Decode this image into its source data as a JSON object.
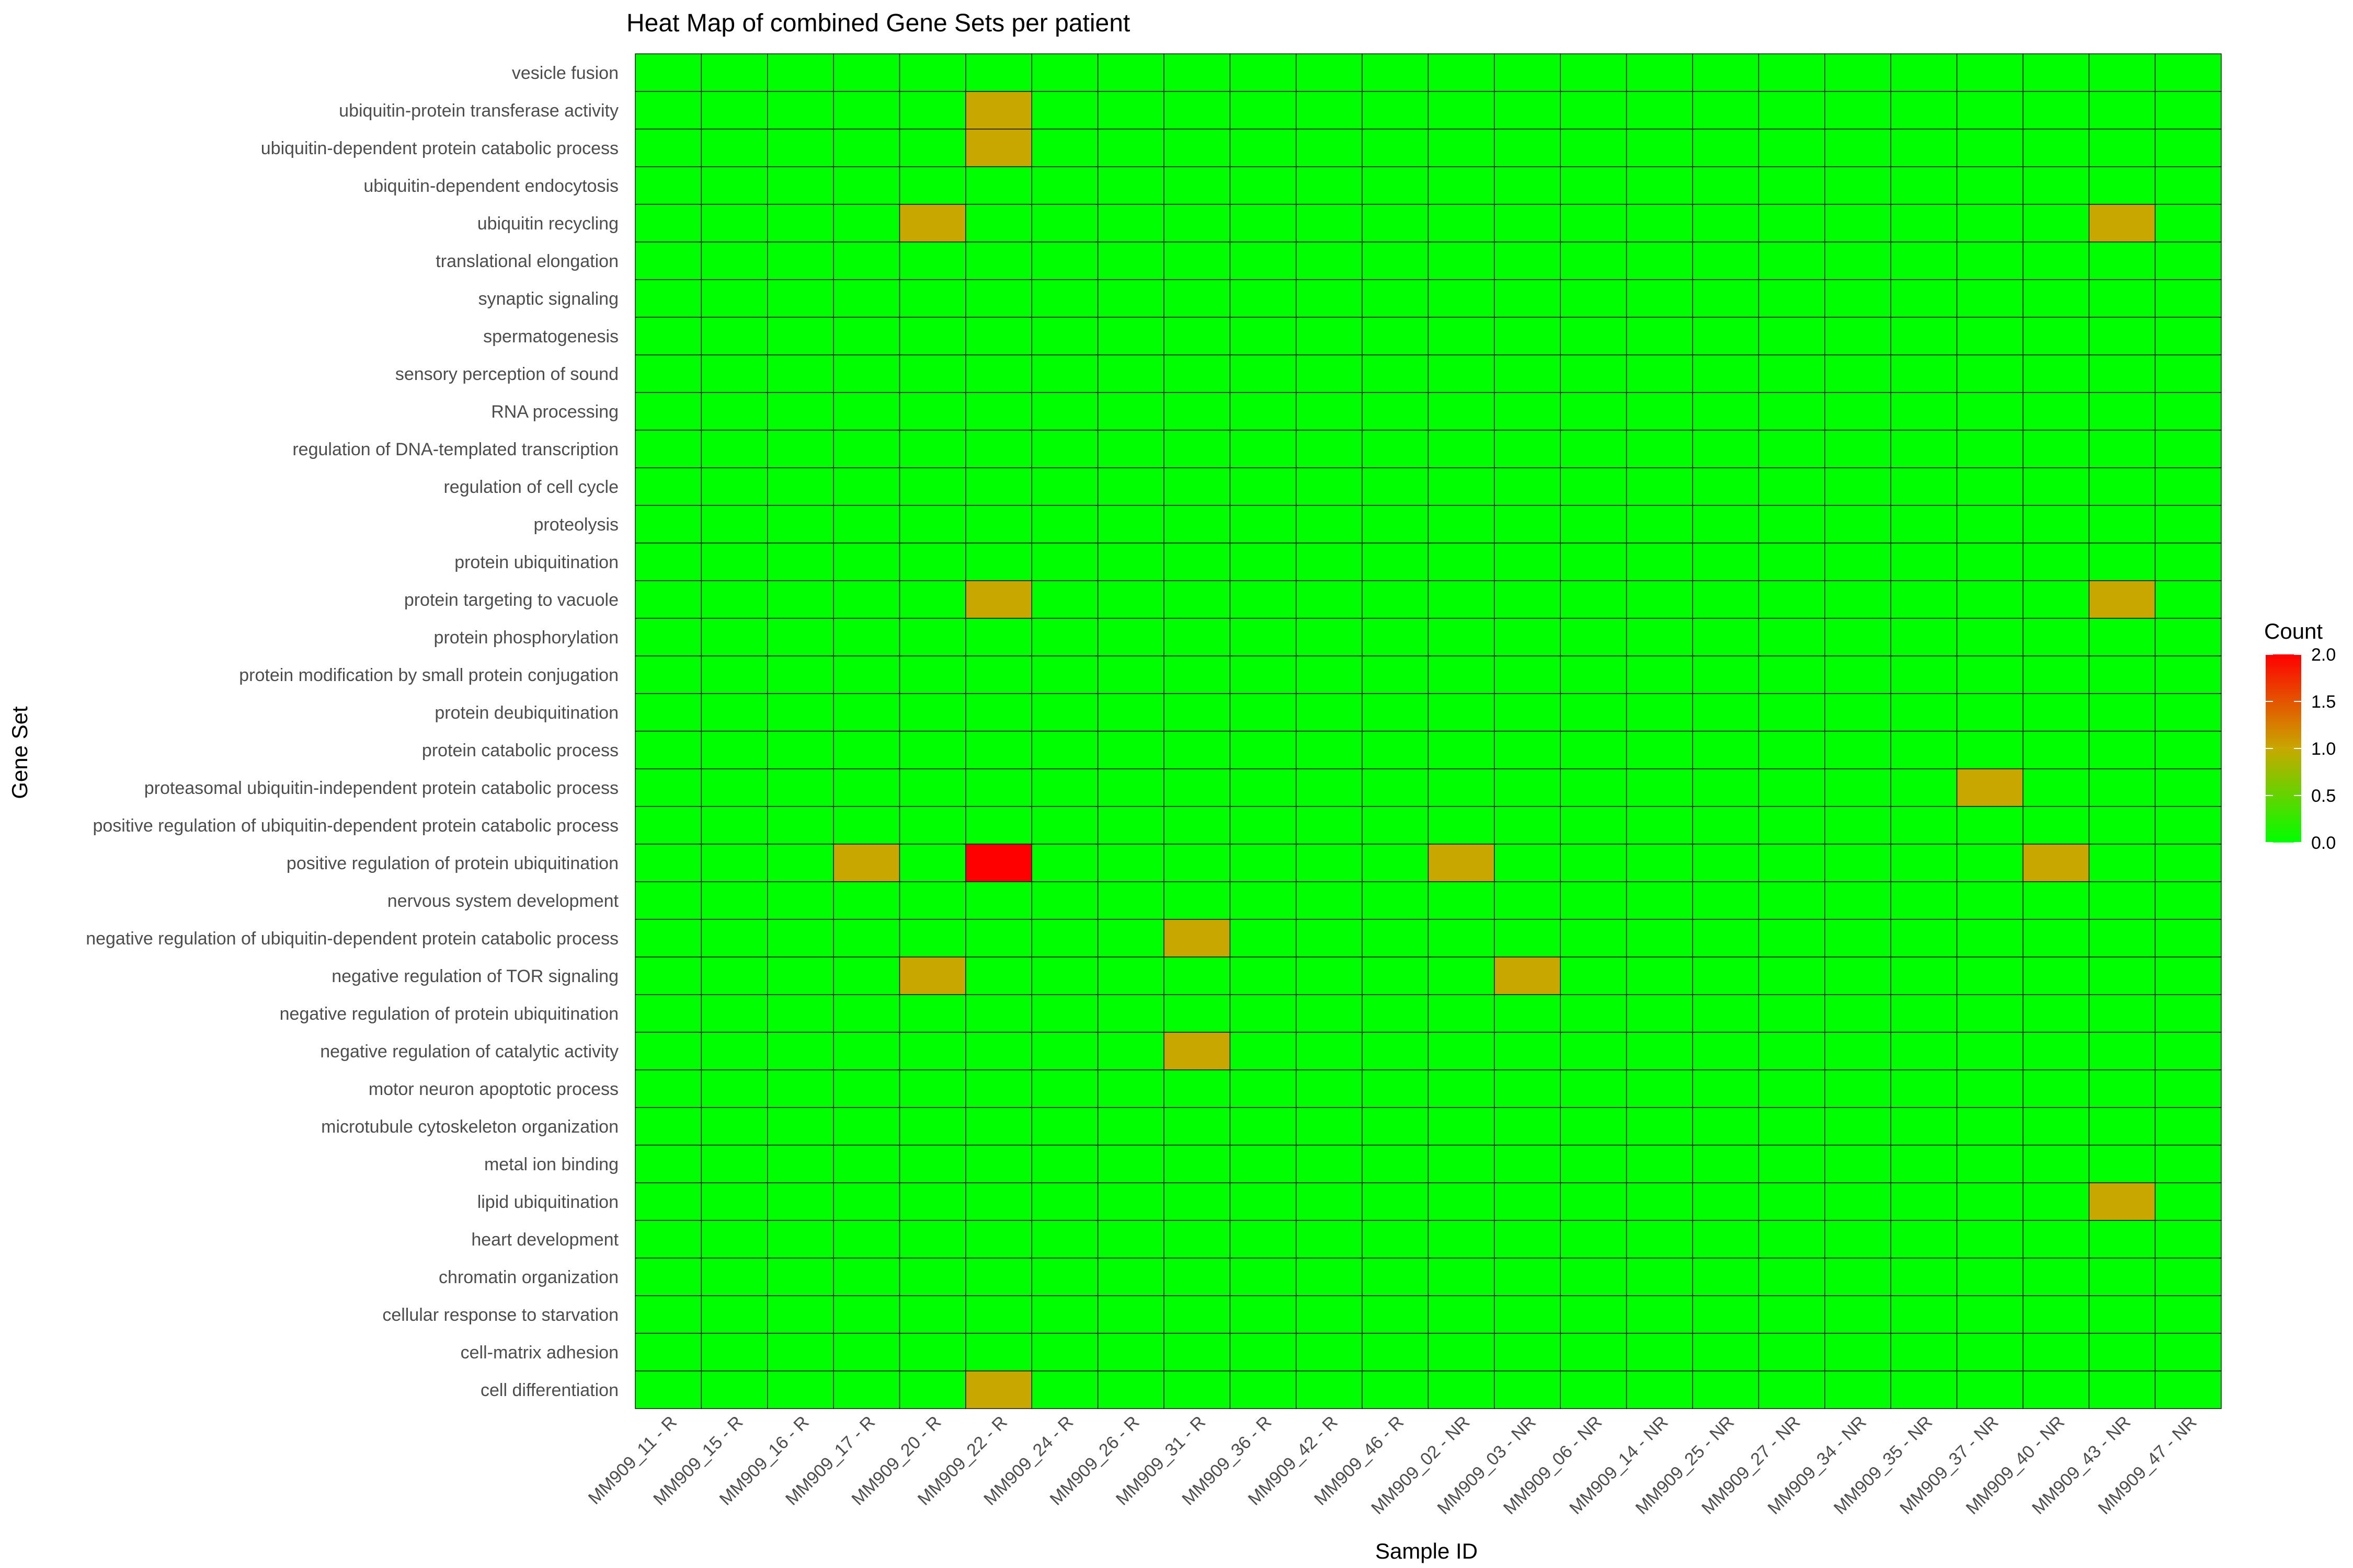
{
  "chart_data": {
    "type": "heatmap",
    "title": "Heat Map of combined Gene Sets per patient",
    "xlabel": "Sample ID",
    "ylabel": "Gene Set",
    "x": [
      "MM909_11 - R",
      "MM909_15 - R",
      "MM909_16 - R",
      "MM909_17 - R",
      "MM909_20 - R",
      "MM909_22 - R",
      "MM909_24 - R",
      "MM909_26 - R",
      "MM909_31 - R",
      "MM909_36 - R",
      "MM909_42 - R",
      "MM909_46 - R",
      "MM909_02 - NR",
      "MM909_03 - NR",
      "MM909_06 - NR",
      "MM909_14 - NR",
      "MM909_25 - NR",
      "MM909_27 - NR",
      "MM909_34 - NR",
      "MM909_35 - NR",
      "MM909_37 - NR",
      "MM909_40 - NR",
      "MM909_43 - NR",
      "MM909_47 - NR"
    ],
    "y": [
      "vesicle fusion",
      "ubiquitin-protein transferase activity",
      "ubiquitin-dependent protein catabolic process",
      "ubiquitin-dependent endocytosis",
      "ubiquitin recycling",
      "translational elongation",
      "synaptic signaling",
      "spermatogenesis",
      "sensory perception of sound",
      "RNA processing",
      "regulation of DNA-templated transcription",
      "regulation of cell cycle",
      "proteolysis",
      "protein ubiquitination",
      "protein targeting to vacuole",
      "protein phosphorylation",
      "protein modification by small protein conjugation",
      "protein deubiquitination",
      "protein catabolic process",
      "proteasomal ubiquitin-independent protein catabolic process",
      "positive regulation of ubiquitin-dependent protein catabolic process",
      "positive regulation of protein ubiquitination",
      "nervous system development",
      "negative regulation of ubiquitin-dependent protein catabolic process",
      "negative regulation of TOR signaling",
      "negative regulation of protein ubiquitination",
      "negative regulation of catalytic activity",
      "motor neuron apoptotic process",
      "microtubule cytoskeleton organization",
      "metal ion binding",
      "lipid ubiquitination",
      "heart development",
      "chromatin organization",
      "cellular response to starvation",
      "cell-matrix adhesion",
      "cell differentiation"
    ],
    "nonzero_cells": [
      {
        "gene_set": "ubiquitin-protein transferase activity",
        "sample": "MM909_22 - R",
        "count": 1
      },
      {
        "gene_set": "ubiquitin-dependent protein catabolic process",
        "sample": "MM909_22 - R",
        "count": 1
      },
      {
        "gene_set": "ubiquitin recycling",
        "sample": "MM909_20 - R",
        "count": 1
      },
      {
        "gene_set": "ubiquitin recycling",
        "sample": "MM909_43 - NR",
        "count": 1
      },
      {
        "gene_set": "protein targeting to vacuole",
        "sample": "MM909_22 - R",
        "count": 1
      },
      {
        "gene_set": "protein targeting to vacuole",
        "sample": "MM909_43 - NR",
        "count": 1
      },
      {
        "gene_set": "proteasomal ubiquitin-independent protein catabolic process",
        "sample": "MM909_37 - NR",
        "count": 1
      },
      {
        "gene_set": "positive regulation of protein ubiquitination",
        "sample": "MM909_17 - R",
        "count": 1
      },
      {
        "gene_set": "positive regulation of protein ubiquitination",
        "sample": "MM909_22 - R",
        "count": 2
      },
      {
        "gene_set": "positive regulation of protein ubiquitination",
        "sample": "MM909_02 - NR",
        "count": 1
      },
      {
        "gene_set": "positive regulation of protein ubiquitination",
        "sample": "MM909_40 - NR",
        "count": 1
      },
      {
        "gene_set": "negative regulation of ubiquitin-dependent protein catabolic process",
        "sample": "MM909_31 - R",
        "count": 1
      },
      {
        "gene_set": "negative regulation of TOR signaling",
        "sample": "MM909_20 - R",
        "count": 1
      },
      {
        "gene_set": "negative regulation of TOR signaling",
        "sample": "MM909_03 - NR",
        "count": 1
      },
      {
        "gene_set": "negative regulation of catalytic activity",
        "sample": "MM909_31 - R",
        "count": 1
      },
      {
        "gene_set": "lipid ubiquitination",
        "sample": "MM909_43 - NR",
        "count": 1
      },
      {
        "gene_set": "cell differentiation",
        "sample": "MM909_22 - R",
        "count": 1
      }
    ],
    "default_count": 0,
    "color_scale": {
      "low": "#00ff00",
      "mid": "#c8a800",
      "high": "#ff0000",
      "min": 0,
      "max": 2
    },
    "legend": {
      "title": "Count",
      "ticks": [
        "2.0",
        "1.5",
        "1.0",
        "0.5",
        "0.0"
      ],
      "position": "right"
    },
    "grid": false
  }
}
